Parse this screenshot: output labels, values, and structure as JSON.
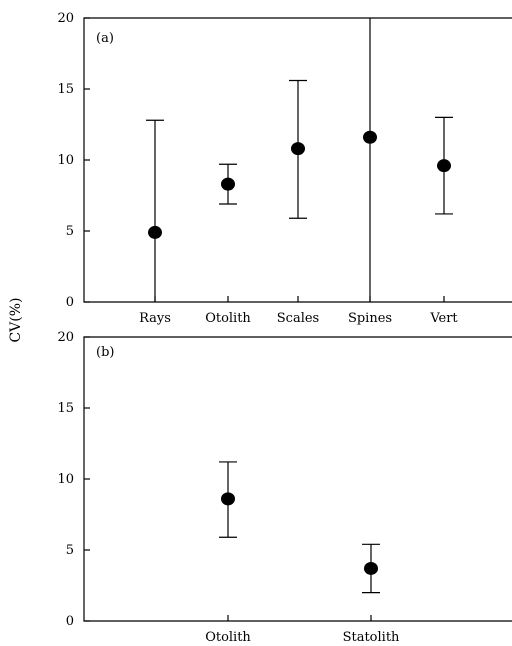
{
  "y_title": "CV(%)",
  "chart_data": [
    {
      "type": "scatter",
      "panel_label": "(a)",
      "categories": [
        "Rays",
        "Otolith",
        "Scales",
        "Spines",
        "Vert"
      ],
      "values": [
        4.9,
        8.3,
        10.8,
        11.6,
        9.6
      ],
      "error_low": [
        0,
        6.9,
        5.9,
        0,
        6.2
      ],
      "error_high": [
        12.8,
        9.7,
        15.6,
        20,
        13.0
      ],
      "ylim": [
        0,
        20
      ],
      "yticks": [
        0,
        5,
        10,
        15,
        20
      ]
    },
    {
      "type": "scatter",
      "panel_label": "(b)",
      "categories": [
        "Otolith",
        "Statolith"
      ],
      "values": [
        8.6,
        3.7
      ],
      "error_low": [
        5.9,
        2.0
      ],
      "error_high": [
        11.2,
        5.4
      ],
      "ylim": [
        0,
        20
      ],
      "yticks": [
        0,
        5,
        10,
        15,
        20
      ]
    }
  ]
}
